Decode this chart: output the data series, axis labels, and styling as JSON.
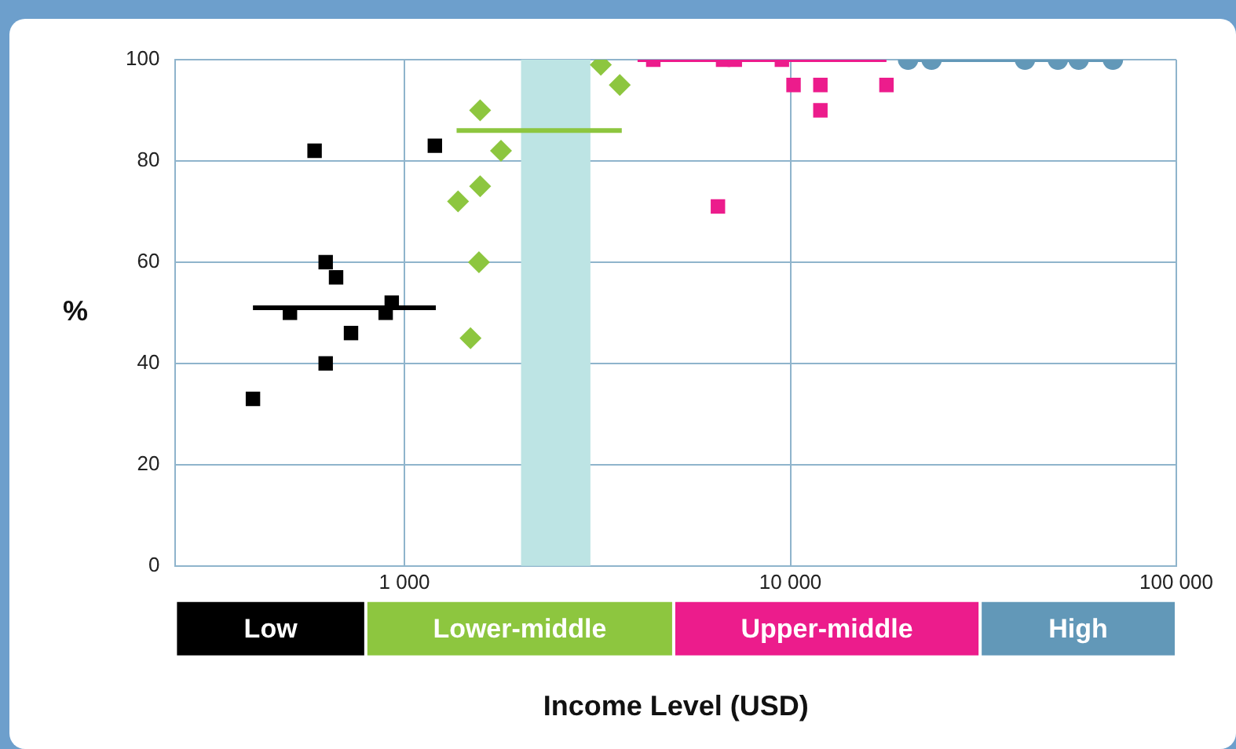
{
  "chart_data": {
    "type": "scatter",
    "xlabel": "Income Level (USD)",
    "ylabel": "%",
    "log": "x",
    "grid": true,
    "legend": false,
    "xlim": [
      255,
      100000
    ],
    "xticks": [
      {
        "value": 1000,
        "label": "1 000"
      },
      {
        "value": 10000,
        "label": "10 000"
      },
      {
        "value": 100000,
        "label": "100 000"
      }
    ],
    "ylim": [
      0,
      100
    ],
    "yticks": [
      0,
      20,
      40,
      60,
      80,
      100
    ],
    "series": [
      {
        "marker": "square",
        "color": "#000000",
        "x": [
          405,
          585,
          625,
          665,
          505,
          727,
          625,
          894,
          927,
          1199
        ],
        "values": [
          33,
          82,
          60,
          57,
          50,
          46,
          40,
          50,
          52,
          83
        ]
      },
      {
        "marker": "diamond",
        "color": "#8dc63f",
        "x": [
          1571,
          1779,
          1571,
          1377,
          1560,
          1483,
          3227,
          3613
        ],
        "values": [
          90,
          82,
          75,
          72,
          60,
          45,
          99,
          95
        ]
      },
      {
        "marker": "square",
        "color": "#ec1c8c",
        "x": [
          4413,
          6694,
          7178,
          9506,
          10190,
          11960,
          11960,
          17740,
          6490
        ],
        "values": [
          100,
          100,
          100,
          100,
          95,
          95,
          90,
          95,
          71
        ]
      },
      {
        "marker": "circle",
        "color": "#6298b8",
        "x": [
          20180,
          23220,
          40530,
          49330,
          55830,
          68500
        ],
        "values": [
          100,
          100,
          100,
          100,
          100,
          100
        ]
      },
      {
        "type": "line",
        "marker": "none",
        "color": "#000000",
        "x": [
          405,
          1206
        ],
        "values": [
          51,
          51
        ]
      },
      {
        "type": "line",
        "marker": "none",
        "color": "#8dc63f",
        "x": [
          1365,
          3657
        ],
        "values": [
          86,
          86
        ]
      },
      {
        "type": "line",
        "marker": "none",
        "color": "#ec1c8c",
        "x": [
          4018,
          17740
        ],
        "values": [
          100,
          100
        ]
      },
      {
        "type": "line",
        "marker": "none",
        "color": "#6298b8",
        "x": [
          20180,
          68500
        ],
        "values": [
          100,
          100
        ]
      }
    ],
    "bands": [
      {
        "axis": "x",
        "from": 2005,
        "to": 3033,
        "color": "#bde4e4"
      }
    ],
    "annotations": [
      "Low",
      "Lower-middle",
      "Upper-middle",
      "High"
    ]
  }
}
